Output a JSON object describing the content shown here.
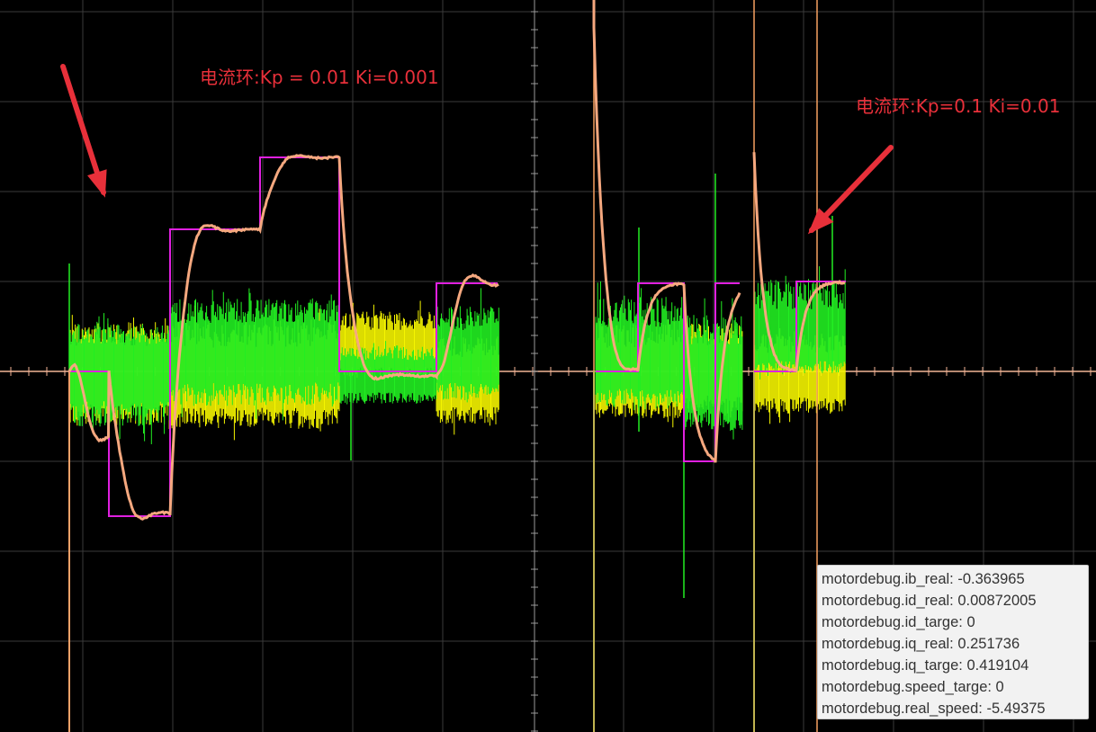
{
  "annotations": {
    "left": "电流环:Kp = 0.01 Ki=0.001",
    "right": "电流环:Kp=0.1 Ki=0.01"
  },
  "readout": {
    "lines": [
      "motordebug.ib_real: -0.363965",
      "motordebug.id_real: 0.00872005",
      "motordebug.id_targe: 0",
      "motordebug.iq_real: 0.251736",
      "motordebug.iq_targe: 0.419104",
      "motordebug.speed_targe: 0",
      "motordebug.real_speed: -5.49375"
    ]
  },
  "colors": {
    "background": "#000000",
    "grid": "#3a3a3a",
    "axis": "#f3b596",
    "target_trace": "#e020e0",
    "response_trace": "#f5a87f",
    "ib_trace": "#22ee22",
    "id_trace": "#f5f500",
    "cursor": "#f5a060",
    "annotation": "#e8303a"
  },
  "icons": [
    "arrow-icon",
    "arrow-icon"
  ]
}
